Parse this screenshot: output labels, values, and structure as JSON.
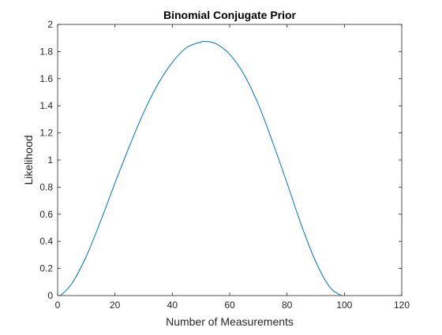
{
  "chart_data": {
    "type": "line",
    "title": "Binomial Conjugate Prior",
    "xlabel": "Number of Measurements",
    "ylabel": "Likelihood",
    "xlim": [
      0,
      120
    ],
    "ylim": [
      0,
      2
    ],
    "xticks": [
      0,
      20,
      40,
      60,
      80,
      100,
      120
    ],
    "yticks": [
      0,
      0.2,
      0.4,
      0.6,
      0.8,
      1,
      1.2,
      1.4,
      1.6,
      1.8,
      2
    ],
    "xtick_labels": [
      "0",
      "20",
      "40",
      "60",
      "80",
      "100",
      "120"
    ],
    "ytick_labels": [
      "0",
      "0.2",
      "0.4",
      "0.6",
      "0.8",
      "1",
      "1.2",
      "1.4",
      "1.6",
      "1.8",
      "2"
    ],
    "grid": false,
    "legend": "none",
    "series": [
      {
        "color": "#0072BD",
        "x": [
          1,
          5,
          10,
          15,
          20,
          25,
          30,
          35,
          40,
          45,
          50,
          51,
          55,
          60,
          65,
          70,
          75,
          80,
          85,
          90,
          95,
          99
        ],
        "y": [
          0.0,
          0.09,
          0.29,
          0.55,
          0.83,
          1.1,
          1.35,
          1.56,
          1.72,
          1.83,
          1.87,
          1.875,
          1.86,
          1.78,
          1.63,
          1.41,
          1.13,
          0.83,
          0.52,
          0.25,
          0.06,
          0.0
        ]
      }
    ]
  }
}
